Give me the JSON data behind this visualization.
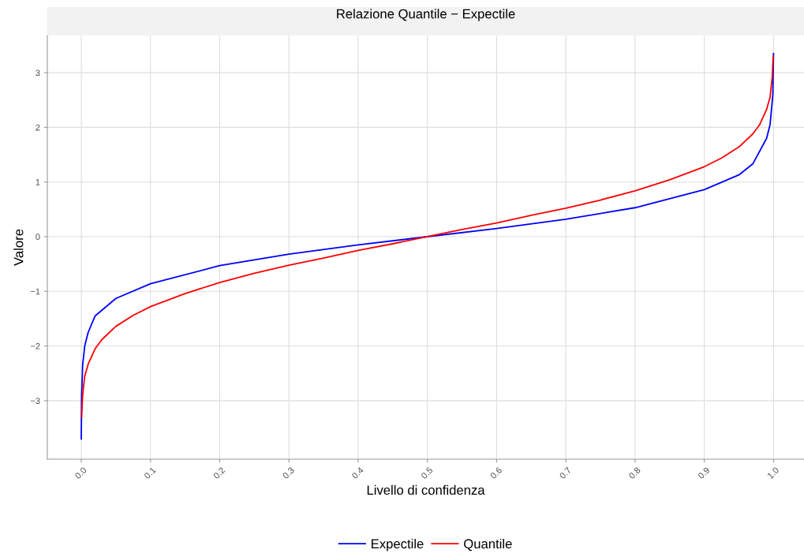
{
  "chart_data": {
    "type": "line",
    "title": "Relazione Quantile − Expectile",
    "xlabel": "Livello di confidenza",
    "ylabel": "Valore",
    "xlim": [
      -0.049,
      1.044
    ],
    "ylim": [
      -4.07,
      3.68
    ],
    "xticks": [
      {
        "value": 0,
        "label": "0.0"
      },
      0.1,
      0.2,
      0.3,
      0.4,
      0.5,
      0.6,
      0.7,
      0.8,
      0.9,
      {
        "value": 1,
        "label": "1.0"
      }
    ],
    "yticks": [
      {
        "value": -3,
        "label": "−3"
      },
      {
        "value": -2,
        "label": "−2"
      },
      {
        "value": -1,
        "label": "−1"
      },
      0,
      1,
      2,
      3
    ],
    "grid": true,
    "legend": "bottom",
    "marker": "none",
    "line_style": "solid",
    "series": [
      {
        "name": "Expectile",
        "color": "#0000ff",
        "x": [
          0,
          0.0005,
          0.002,
          0.005,
          0.01,
          0.02,
          0.05,
          0.1,
          0.2,
          0.3,
          0.4,
          0.5,
          0.6,
          0.7,
          0.8,
          0.9,
          0.95,
          0.97,
          0.99,
          0.995,
          0.999,
          1.0
        ],
        "values": [
          -3.7,
          -2.9,
          -2.35,
          -2.0,
          -1.75,
          -1.45,
          -1.13,
          -0.86,
          -0.53,
          -0.32,
          -0.15,
          0,
          0.15,
          0.32,
          0.53,
          0.86,
          1.13,
          1.33,
          1.8,
          2.05,
          2.6,
          3.35
        ]
      },
      {
        "name": "Quantile",
        "color": "#ff0000",
        "x": [
          0.0005,
          0.002,
          0.005,
          0.01,
          0.02,
          0.03,
          0.05,
          0.075,
          0.1,
          0.15,
          0.2,
          0.25,
          0.3,
          0.35,
          0.4,
          0.45,
          0.5,
          0.55,
          0.6,
          0.65,
          0.7,
          0.75,
          0.8,
          0.85,
          0.9,
          0.925,
          0.95,
          0.97,
          0.98,
          0.99,
          0.995,
          0.998,
          0.9995
        ],
        "values": [
          -3.3,
          -2.9,
          -2.55,
          -2.33,
          -2.05,
          -1.88,
          -1.64,
          -1.44,
          -1.28,
          -1.04,
          -0.84,
          -0.67,
          -0.52,
          -0.39,
          -0.25,
          -0.13,
          0,
          0.13,
          0.25,
          0.39,
          0.52,
          0.67,
          0.84,
          1.04,
          1.28,
          1.44,
          1.64,
          1.88,
          2.05,
          2.33,
          2.55,
          2.9,
          3.3
        ]
      }
    ]
  }
}
